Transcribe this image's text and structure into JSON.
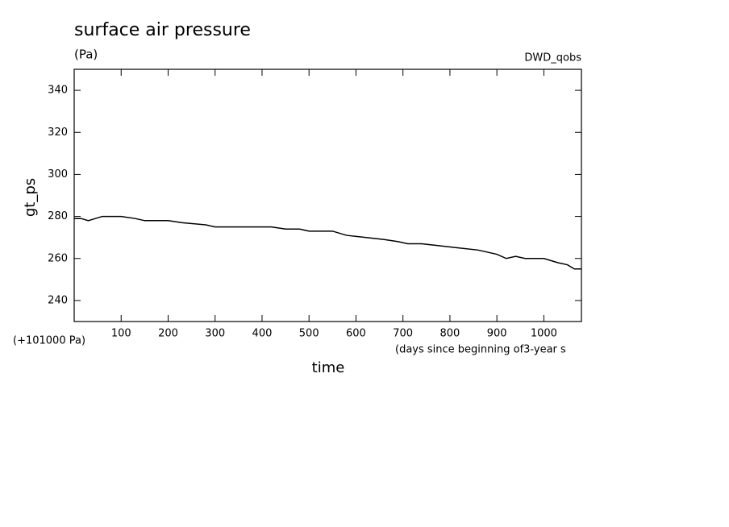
{
  "chart_data": {
    "type": "line",
    "title": "surface air pressure",
    "subtitle": "(Pa)",
    "source": "DWD_qobs",
    "offset_note": "(+101000 Pa)",
    "x_note": "(days since beginning of3-year s",
    "xlabel": "time",
    "ylabel": "gt_ps",
    "x": [
      0,
      15,
      30,
      45,
      60,
      100,
      130,
      150,
      200,
      230,
      280,
      300,
      340,
      380,
      420,
      450,
      480,
      500,
      550,
      580,
      620,
      660,
      690,
      710,
      740,
      780,
      820,
      860,
      880,
      900,
      920,
      940,
      960,
      1000,
      1030,
      1050,
      1065,
      1080
    ],
    "series": [
      {
        "name": "gt_ps",
        "color": "#000000",
        "values": [
          279,
          279,
          278,
          279,
          280,
          280,
          279,
          278,
          278,
          277,
          276,
          275,
          275,
          275,
          275,
          274,
          274,
          273,
          273,
          271,
          270,
          269,
          268,
          267,
          267,
          266,
          265,
          264,
          263,
          262,
          260,
          261,
          260,
          260,
          258,
          257,
          255,
          255
        ]
      }
    ],
    "xlim": [
      0,
      1080
    ],
    "xticks": [
      100,
      200,
      300,
      400,
      500,
      600,
      700,
      800,
      900,
      1000
    ],
    "ylim": [
      230,
      350
    ],
    "yticks": [
      240,
      260,
      280,
      300,
      320,
      340
    ]
  }
}
